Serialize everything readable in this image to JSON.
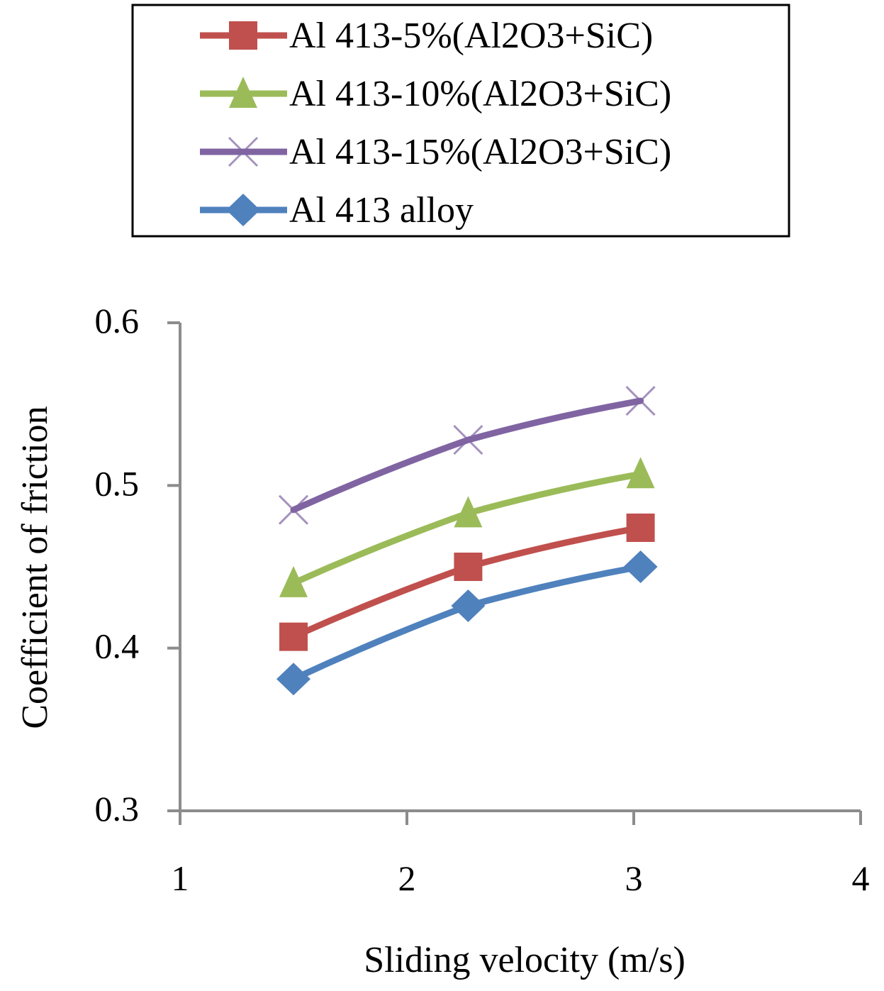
{
  "chart_data": {
    "type": "line",
    "title": "",
    "xlabel": "Sliding velocity (m/s)",
    "ylabel": "Coefficient of friction",
    "xlim": [
      1,
      4
    ],
    "ylim": [
      0.3,
      0.6
    ],
    "xticks": [
      1,
      2,
      3,
      4
    ],
    "xtick_labels": [
      "1",
      "2",
      "3",
      "4"
    ],
    "yticks": [
      0.3,
      0.4,
      0.5,
      0.6
    ],
    "ytick_labels": [
      "0.3",
      "0.4",
      "0.5",
      "0.6"
    ],
    "grid": false,
    "legend_position": "top",
    "series": [
      {
        "name": "Al 413-5%(Al2O3+SiC)",
        "color": "#C0504D",
        "marker": "square",
        "x": [
          1.5,
          2.27,
          3.03
        ],
        "values": [
          0.407,
          0.45,
          0.474
        ]
      },
      {
        "name": "Al 413-10%(Al2O3+SiC)",
        "color": "#9BBB59",
        "marker": "triangle",
        "x": [
          1.5,
          2.27,
          3.03
        ],
        "values": [
          0.44,
          0.483,
          0.507
        ]
      },
      {
        "name": "Al 413-15%(Al2O3+SiC)",
        "color": "#8064A2",
        "marker": "x",
        "x": [
          1.5,
          2.27,
          3.03
        ],
        "values": [
          0.485,
          0.528,
          0.552
        ]
      },
      {
        "name": "Al 413 alloy",
        "color": "#4F81BD",
        "marker": "diamond",
        "x": [
          1.5,
          2.27,
          3.03
        ],
        "values": [
          0.381,
          0.426,
          0.45
        ]
      }
    ],
    "axis_color": "#8C8C8C"
  }
}
